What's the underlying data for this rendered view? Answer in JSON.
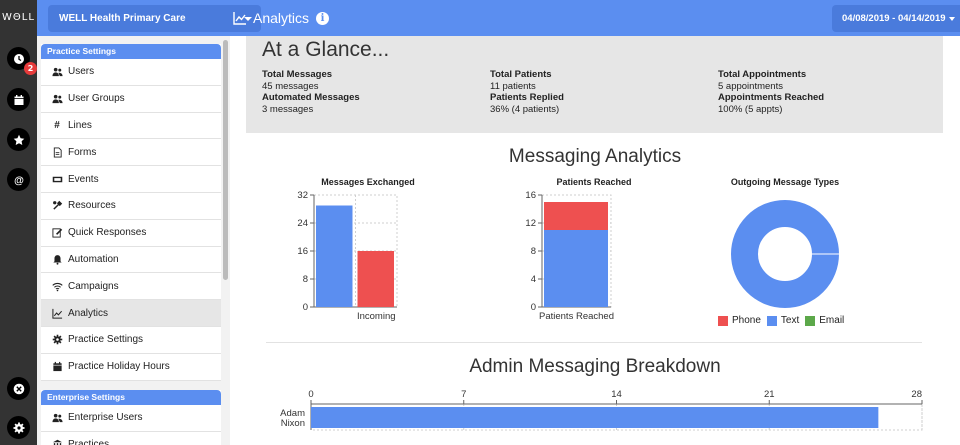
{
  "rail": {
    "logo": "WΘLL",
    "badge_count": "2"
  },
  "topbar": {
    "practice_name": "WELL Health Primary Care",
    "page_title": "Analytics",
    "date_range": "04/08/2019 - 04/14/2019",
    "accent": "#5b8ef0"
  },
  "sidebar": {
    "practice_header": "Practice Settings",
    "practice_items": [
      {
        "label": "Users",
        "icon": "users-icon"
      },
      {
        "label": "User Groups",
        "icon": "users-icon"
      },
      {
        "label": "Lines",
        "icon": "hash-icon"
      },
      {
        "label": "Forms",
        "icon": "document-icon"
      },
      {
        "label": "Events",
        "icon": "ticket-icon"
      },
      {
        "label": "Resources",
        "icon": "tools-icon"
      },
      {
        "label": "Quick Responses",
        "icon": "edit-icon"
      },
      {
        "label": "Automation",
        "icon": "bell-icon"
      },
      {
        "label": "Campaigns",
        "icon": "wifi-icon"
      },
      {
        "label": "Analytics",
        "icon": "chart-icon"
      },
      {
        "label": "Practice Settings",
        "icon": "gear-icon"
      },
      {
        "label": "Practice Holiday Hours",
        "icon": "calendar-icon"
      }
    ],
    "enterprise_header": "Enterprise Settings",
    "enterprise_items": [
      {
        "label": "Enterprise Users",
        "icon": "users-icon"
      },
      {
        "label": "Practices",
        "icon": "building-icon"
      }
    ]
  },
  "glance": {
    "title": "At a Glance...",
    "col1": {
      "l1": "Total Messages",
      "v1": "45 messages",
      "l2": "Automated Messages",
      "v2": "3 messages"
    },
    "col2": {
      "l1": "Total Patients",
      "v1": "11 patients",
      "l2": "Patients Replied",
      "v2": "36% (4 patients)"
    },
    "col3": {
      "l1": "Total Appointments",
      "v1": "5 appointments",
      "l2": "Appointments Reached",
      "v2": "100% (5 appts)"
    }
  },
  "messaging": {
    "title": "Messaging Analytics",
    "colors": {
      "phone": "#ee5050",
      "text": "#5b8ef0",
      "email": "#5ca84a"
    }
  },
  "chart_data": [
    {
      "type": "bar",
      "title": "Messages Exchanged",
      "categories": [
        "",
        "Incoming"
      ],
      "values": [
        29,
        16
      ],
      "colors": [
        "#5b8ef0",
        "#ee5050"
      ],
      "ylim": [
        0,
        32
      ],
      "yticks": [
        "0",
        "8",
        "16",
        "24",
        "32"
      ],
      "grid": true
    },
    {
      "type": "bar",
      "title": "Patients Reached",
      "categories": [
        "Patients Reached"
      ],
      "series": [
        {
          "values": [
            11
          ],
          "color": "#5b8ef0"
        },
        {
          "values": [
            4
          ],
          "color": "#ee5050"
        }
      ],
      "stacked": true,
      "ylim": [
        0,
        16
      ],
      "yticks": [
        "0",
        "4",
        "8",
        "12",
        "16"
      ],
      "grid": true
    },
    {
      "type": "pie",
      "title": "Outgoing Message Types",
      "donut": true,
      "labels": [
        "Phone",
        "Text",
        "Email"
      ],
      "values": [
        0,
        100,
        0
      ],
      "colors": [
        "#ee5050",
        "#5b8ef0",
        "#5ca84a"
      ],
      "legend": "bottom"
    },
    {
      "type": "bar",
      "orientation": "horizontal",
      "title": "Admin Messaging Breakdown",
      "categories": [
        "Adam Nixon"
      ],
      "values": [
        26
      ],
      "colors": [
        "#5b8ef0"
      ],
      "xlim": [
        0,
        28
      ],
      "xticks": [
        "0",
        "7",
        "14",
        "21",
        "28"
      ],
      "grid": true
    }
  ]
}
